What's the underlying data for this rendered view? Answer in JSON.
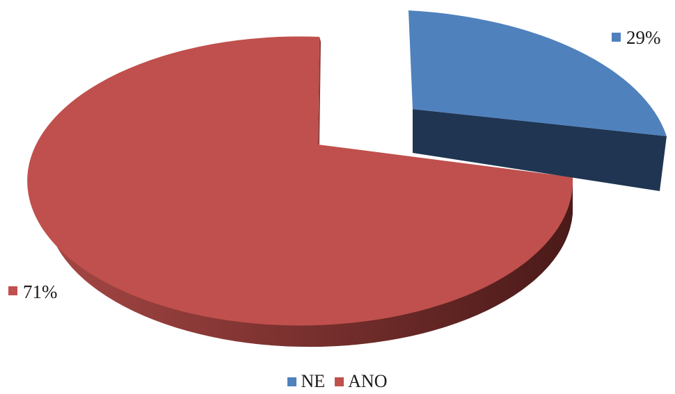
{
  "chart_data": {
    "type": "pie",
    "title": "",
    "series": [
      {
        "name": "NE",
        "value": 29,
        "label": "29%",
        "color": "#4f81bd",
        "color_dark": "#1f3552"
      },
      {
        "name": "ANO",
        "value": 71,
        "label": "71%",
        "color": "#c0504d",
        "color_dark": "#4a1a19"
      }
    ],
    "style": "3d-exploded",
    "legend_position": "bottom"
  }
}
